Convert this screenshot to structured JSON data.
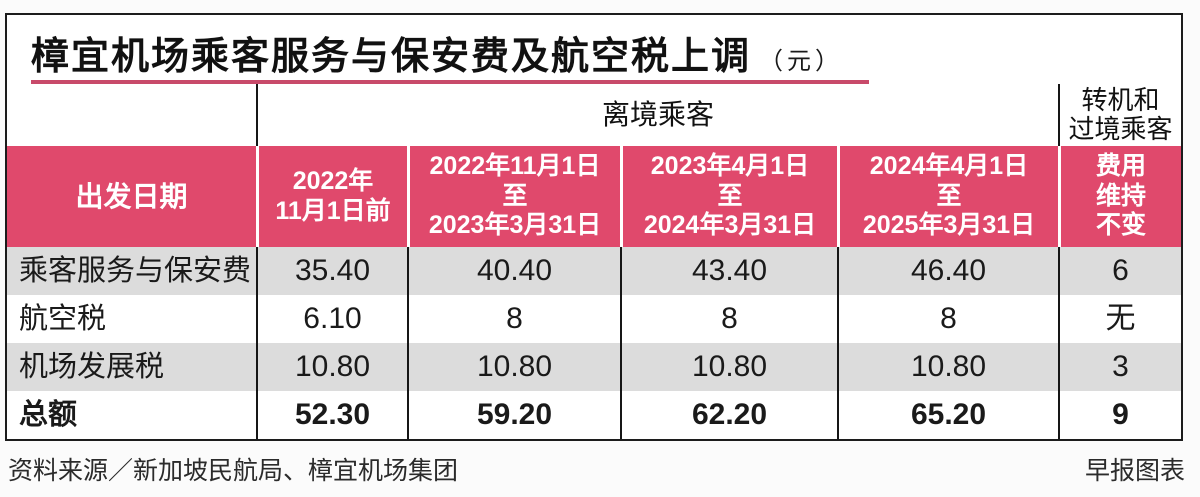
{
  "title": {
    "text": "樟宜机场乘客服务与保安费及航空税上调",
    "unit": "（元）"
  },
  "colors": {
    "header_pink": "#e0496c",
    "title_rule_pink": "#c84a6a",
    "stripe_gray": "#dcdcdc",
    "frame_border": "#1c1c1c"
  },
  "chart_data": {
    "type": "table",
    "title": "樟宜机场乘客服务与保安费及航空税上调",
    "unit_label": "（元）",
    "group_headers": {
      "departing": "离境乘客",
      "transit": "转机和\n过境乘客"
    },
    "columns": [
      "出发日期",
      "2022年\n11月1日前",
      "2022年11月1日\n至\n2023年3月31日",
      "2023年4月1日\n至\n2024年3月31日",
      "2024年4月1日\n至\n2025年3月31日",
      "费用\n维持\n不变"
    ],
    "rows": [
      {
        "label": "乘客服务与保安费",
        "values": [
          "35.40",
          "40.40",
          "43.40",
          "46.40",
          "6"
        ]
      },
      {
        "label": "航空税",
        "values": [
          "6.10",
          "8",
          "8",
          "8",
          "无"
        ]
      },
      {
        "label": "机场发展税",
        "values": [
          "10.80",
          "10.80",
          "10.80",
          "10.80",
          "3"
        ]
      },
      {
        "label": "总额",
        "values": [
          "52.30",
          "59.20",
          "62.20",
          "65.20",
          "9"
        ]
      }
    ]
  },
  "footer": {
    "source": "资料来源／新加坡民航局、樟宜机场集团",
    "credit": "早报图表"
  }
}
